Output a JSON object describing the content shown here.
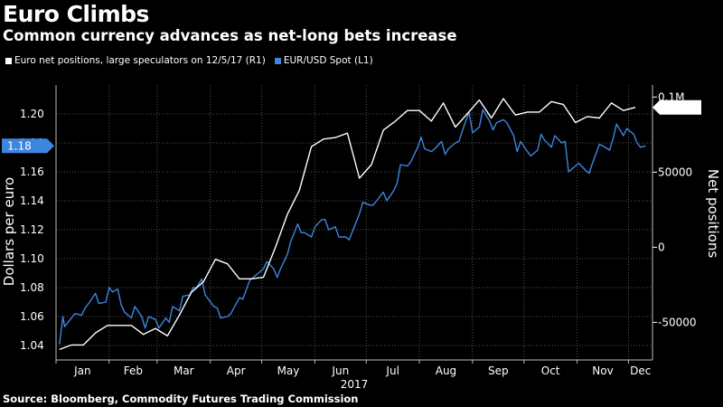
{
  "title": "Euro Climbs",
  "subtitle": "Common currency advances as net-long bets increase",
  "source": "Source: Bloomberg, Commodity Futures Trading Commission",
  "colors": {
    "net_positions": "#ffffff",
    "eur_usd": "#3d86e0",
    "background": "#000000",
    "grid": "#555555"
  },
  "chart_data": {
    "type": "line",
    "title": "Euro Climbs",
    "subtitle": "Common currency advances as net-long bets increase",
    "xlabel": "2017",
    "x_ticks": [
      "Jan",
      "Feb",
      "Mar",
      "Apr",
      "May",
      "Jun",
      "Jul",
      "Aug",
      "Sep",
      "Oct",
      "Nov",
      "Dec"
    ],
    "left_axis": {
      "label": "Dollars per euro",
      "ylim": [
        1.03,
        1.22
      ],
      "ticks": [
        "1.04",
        "1.06",
        "1.08",
        "1.10",
        "1.12",
        "1.14",
        "1.16",
        "1.18",
        "1.20"
      ],
      "tick_values": [
        1.04,
        1.06,
        1.08,
        1.1,
        1.12,
        1.14,
        1.16,
        1.18,
        1.2
      ]
    },
    "right_axis": {
      "label": "Net positions",
      "ylim": [
        -75000,
        108000
      ],
      "ticks": [
        "-50000",
        "0",
        "50000",
        "0.1M"
      ],
      "tick_values": [
        -50000,
        0,
        50000,
        100000
      ]
    },
    "grid": true,
    "legend_position": "top-left",
    "series": [
      {
        "name": "Euro net positions, large speculators on 12/5/17 (R1)",
        "axis": "right",
        "last_value_label": "93106",
        "points": [
          [
            "2017-01-03",
            -68000
          ],
          [
            "2017-01-10",
            -65000
          ],
          [
            "2017-01-17",
            -65000
          ],
          [
            "2017-01-24",
            -57000
          ],
          [
            "2017-01-31",
            -52000
          ],
          [
            "2017-02-07",
            -52000
          ],
          [
            "2017-02-14",
            -52000
          ],
          [
            "2017-02-21",
            -58000
          ],
          [
            "2017-02-28",
            -54000
          ],
          [
            "2017-03-07",
            -59000
          ],
          [
            "2017-03-14",
            -45000
          ],
          [
            "2017-03-21",
            -30000
          ],
          [
            "2017-03-28",
            -23000
          ],
          [
            "2017-04-04",
            -8000
          ],
          [
            "2017-04-11",
            -11000
          ],
          [
            "2017-04-18",
            -21000
          ],
          [
            "2017-04-25",
            -21000
          ],
          [
            "2017-05-02",
            -20000
          ],
          [
            "2017-05-09",
            0
          ],
          [
            "2017-05-16",
            22000
          ],
          [
            "2017-05-23",
            38000
          ],
          [
            "2017-05-30",
            67000
          ],
          [
            "2017-06-06",
            72000
          ],
          [
            "2017-06-13",
            73000
          ],
          [
            "2017-06-20",
            76000
          ],
          [
            "2017-06-27",
            46000
          ],
          [
            "2017-07-04",
            55000
          ],
          [
            "2017-07-11",
            78000
          ],
          [
            "2017-07-18",
            84000
          ],
          [
            "2017-07-25",
            91000
          ],
          [
            "2017-08-01",
            91000
          ],
          [
            "2017-08-08",
            84000
          ],
          [
            "2017-08-15",
            96000
          ],
          [
            "2017-08-22",
            80000
          ],
          [
            "2017-08-29",
            89000
          ],
          [
            "2017-09-05",
            98000
          ],
          [
            "2017-09-12",
            86000
          ],
          [
            "2017-09-19",
            99000
          ],
          [
            "2017-09-26",
            88000
          ],
          [
            "2017-10-03",
            90000
          ],
          [
            "2017-10-10",
            90000
          ],
          [
            "2017-10-17",
            97000
          ],
          [
            "2017-10-24",
            95000
          ],
          [
            "2017-10-31",
            83000
          ],
          [
            "2017-11-07",
            87000
          ],
          [
            "2017-11-14",
            86000
          ],
          [
            "2017-11-21",
            96000
          ],
          [
            "2017-11-28",
            91000
          ],
          [
            "2017-12-05",
            93106
          ]
        ]
      },
      {
        "name": "EUR/USD Spot (L1)",
        "axis": "left",
        "last_value_label": "1.18",
        "points": [
          [
            "2017-01-03",
            1.041
          ],
          [
            "2017-01-05",
            1.06
          ],
          [
            "2017-01-06",
            1.053
          ],
          [
            "2017-01-10",
            1.059
          ],
          [
            "2017-01-12",
            1.062
          ],
          [
            "2017-01-16",
            1.061
          ],
          [
            "2017-01-18",
            1.066
          ],
          [
            "2017-01-20",
            1.069
          ],
          [
            "2017-01-24",
            1.076
          ],
          [
            "2017-01-26",
            1.069
          ],
          [
            "2017-01-30",
            1.07
          ],
          [
            "2017-02-01",
            1.08
          ],
          [
            "2017-02-03",
            1.077
          ],
          [
            "2017-02-06",
            1.079
          ],
          [
            "2017-02-08",
            1.068
          ],
          [
            "2017-02-10",
            1.063
          ],
          [
            "2017-02-14",
            1.059
          ],
          [
            "2017-02-16",
            1.067
          ],
          [
            "2017-02-20",
            1.06
          ],
          [
            "2017-02-22",
            1.052
          ],
          [
            "2017-02-24",
            1.06
          ],
          [
            "2017-02-28",
            1.058
          ],
          [
            "2017-03-02",
            1.052
          ],
          [
            "2017-03-06",
            1.059
          ],
          [
            "2017-03-08",
            1.056
          ],
          [
            "2017-03-10",
            1.067
          ],
          [
            "2017-03-14",
            1.064
          ],
          [
            "2017-03-16",
            1.074
          ],
          [
            "2017-03-20",
            1.075
          ],
          [
            "2017-03-22",
            1.08
          ],
          [
            "2017-03-24",
            1.08
          ],
          [
            "2017-03-27",
            1.086
          ],
          [
            "2017-03-29",
            1.075
          ],
          [
            "2017-04-03",
            1.067
          ],
          [
            "2017-04-05",
            1.066
          ],
          [
            "2017-04-07",
            1.059
          ],
          [
            "2017-04-11",
            1.06
          ],
          [
            "2017-04-13",
            1.062
          ],
          [
            "2017-04-18",
            1.073
          ],
          [
            "2017-04-20",
            1.072
          ],
          [
            "2017-04-24",
            1.085
          ],
          [
            "2017-04-26",
            1.087
          ],
          [
            "2017-04-28",
            1.089
          ],
          [
            "2017-05-02",
            1.093
          ],
          [
            "2017-05-04",
            1.098
          ],
          [
            "2017-05-08",
            1.093
          ],
          [
            "2017-05-10",
            1.087
          ],
          [
            "2017-05-12",
            1.093
          ],
          [
            "2017-05-16",
            1.103
          ],
          [
            "2017-05-18",
            1.112
          ],
          [
            "2017-05-22",
            1.124
          ],
          [
            "2017-05-24",
            1.118
          ],
          [
            "2017-05-26",
            1.118
          ],
          [
            "2017-05-30",
            1.115
          ],
          [
            "2017-06-01",
            1.122
          ],
          [
            "2017-06-05",
            1.127
          ],
          [
            "2017-06-07",
            1.127
          ],
          [
            "2017-06-09",
            1.12
          ],
          [
            "2017-06-13",
            1.122
          ],
          [
            "2017-06-15",
            1.115
          ],
          [
            "2017-06-19",
            1.115
          ],
          [
            "2017-06-21",
            1.113
          ],
          [
            "2017-06-23",
            1.119
          ],
          [
            "2017-06-27",
            1.131
          ],
          [
            "2017-06-29",
            1.139
          ],
          [
            "2017-07-03",
            1.137
          ],
          [
            "2017-07-05",
            1.137
          ],
          [
            "2017-07-07",
            1.14
          ],
          [
            "2017-07-11",
            1.146
          ],
          [
            "2017-07-13",
            1.14
          ],
          [
            "2017-07-17",
            1.147
          ],
          [
            "2017-07-19",
            1.152
          ],
          [
            "2017-07-21",
            1.165
          ],
          [
            "2017-07-25",
            1.164
          ],
          [
            "2017-07-27",
            1.167
          ],
          [
            "2017-07-31",
            1.177
          ],
          [
            "2017-08-02",
            1.184
          ],
          [
            "2017-08-04",
            1.176
          ],
          [
            "2017-08-08",
            1.174
          ],
          [
            "2017-08-10",
            1.176
          ],
          [
            "2017-08-14",
            1.181
          ],
          [
            "2017-08-16",
            1.172
          ],
          [
            "2017-08-18",
            1.176
          ],
          [
            "2017-08-22",
            1.18
          ],
          [
            "2017-08-24",
            1.181
          ],
          [
            "2017-08-28",
            1.195
          ],
          [
            "2017-08-30",
            1.201
          ],
          [
            "2017-09-01",
            1.187
          ],
          [
            "2017-09-05",
            1.191
          ],
          [
            "2017-09-07",
            1.203
          ],
          [
            "2017-09-11",
            1.195
          ],
          [
            "2017-09-13",
            1.189
          ],
          [
            "2017-09-15",
            1.194
          ],
          [
            "2017-09-19",
            1.196
          ],
          [
            "2017-09-21",
            1.194
          ],
          [
            "2017-09-25",
            1.185
          ],
          [
            "2017-09-27",
            1.174
          ],
          [
            "2017-09-29",
            1.181
          ],
          [
            "2017-10-03",
            1.174
          ],
          [
            "2017-10-05",
            1.171
          ],
          [
            "2017-10-09",
            1.175
          ],
          [
            "2017-10-11",
            1.186
          ],
          [
            "2017-10-13",
            1.182
          ],
          [
            "2017-10-17",
            1.177
          ],
          [
            "2017-10-19",
            1.185
          ],
          [
            "2017-10-23",
            1.18
          ],
          [
            "2017-10-25",
            1.181
          ],
          [
            "2017-10-27",
            1.16
          ],
          [
            "2017-10-31",
            1.164
          ],
          [
            "2017-11-02",
            1.166
          ],
          [
            "2017-11-06",
            1.161
          ],
          [
            "2017-11-08",
            1.159
          ],
          [
            "2017-11-10",
            1.166
          ],
          [
            "2017-11-14",
            1.179
          ],
          [
            "2017-11-16",
            1.178
          ],
          [
            "2017-11-20",
            1.175
          ],
          [
            "2017-11-22",
            1.183
          ],
          [
            "2017-11-24",
            1.193
          ],
          [
            "2017-11-28",
            1.185
          ],
          [
            "2017-11-30",
            1.19
          ],
          [
            "2017-12-01",
            1.189
          ],
          [
            "2017-12-04",
            1.186
          ],
          [
            "2017-12-06",
            1.18
          ],
          [
            "2017-12-08",
            1.177
          ],
          [
            "2017-12-11",
            1.178
          ]
        ]
      }
    ]
  }
}
